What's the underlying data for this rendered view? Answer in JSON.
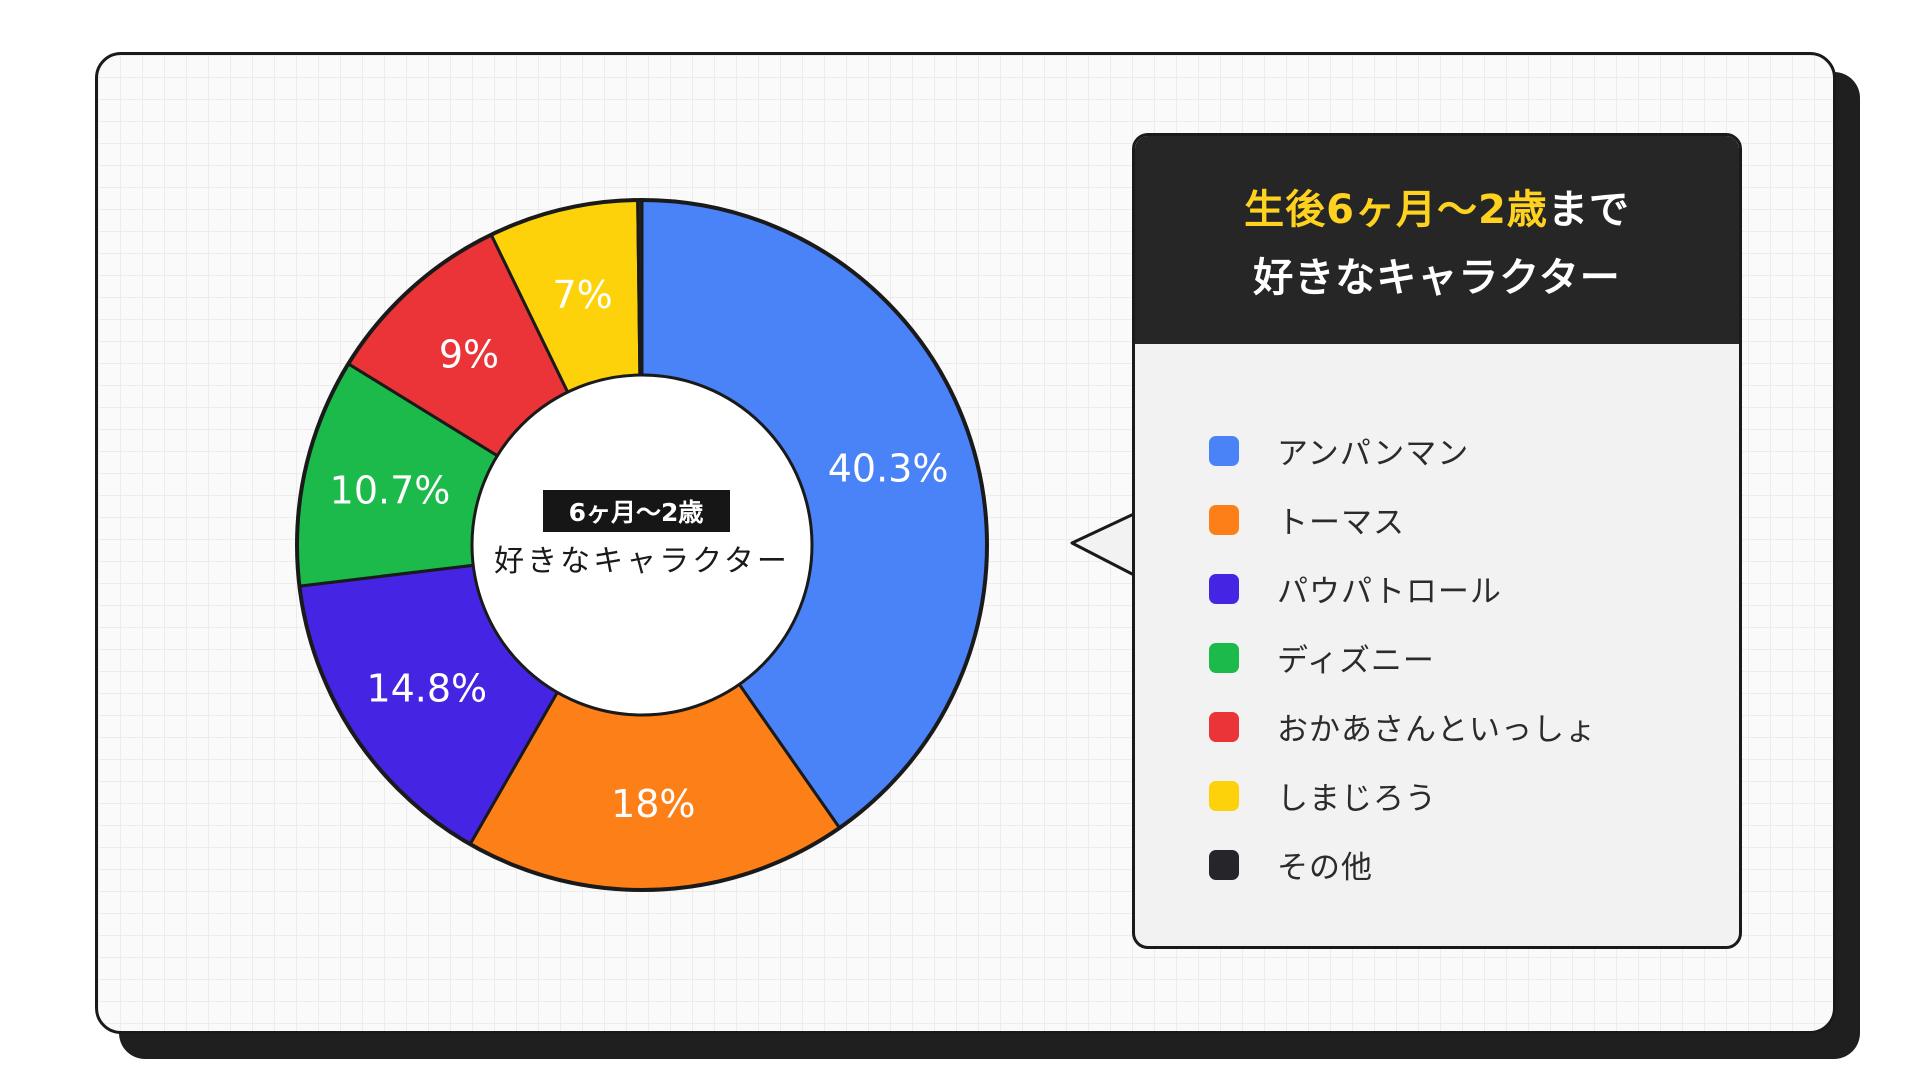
{
  "chart_data": {
    "type": "pie",
    "categories": [
      "アンパンマン",
      "トーマス",
      "パウパトロール",
      "ディズニー",
      "おかあさんといっしょ",
      "しまじろう",
      "その他"
    ],
    "values": [
      40.3,
      18,
      14.8,
      10.7,
      9,
      7,
      null
    ],
    "data_labels": [
      "40.3%",
      "18%",
      "14.8%",
      "10.7%",
      "9%",
      "7%",
      ""
    ],
    "colors": [
      "#4a82f7",
      "#fd7f17",
      "#4524e3",
      "#1cb94b",
      "#ea3437",
      "#fdd20a",
      "#26262a"
    ],
    "center": {
      "badge": "6ヶ月〜2歳",
      "caption": "好きなキャラクター"
    }
  },
  "legend": {
    "title_accent": "生後6ヶ月〜2歳",
    "title_rest": "まで",
    "title_line2": "好きなキャラクター",
    "items": [
      {
        "label": "アンパンマン",
        "color": "#4a82f7"
      },
      {
        "label": "トーマス",
        "color": "#fd7f17"
      },
      {
        "label": "パウパトロール",
        "color": "#4524e3"
      },
      {
        "label": "ディズニー",
        "color": "#1cb94b"
      },
      {
        "label": "おかあさんといっしょ",
        "color": "#ea3437"
      },
      {
        "label": "しまじろう",
        "color": "#fdd20a"
      },
      {
        "label": "その他",
        "color": "#26262a"
      }
    ]
  }
}
